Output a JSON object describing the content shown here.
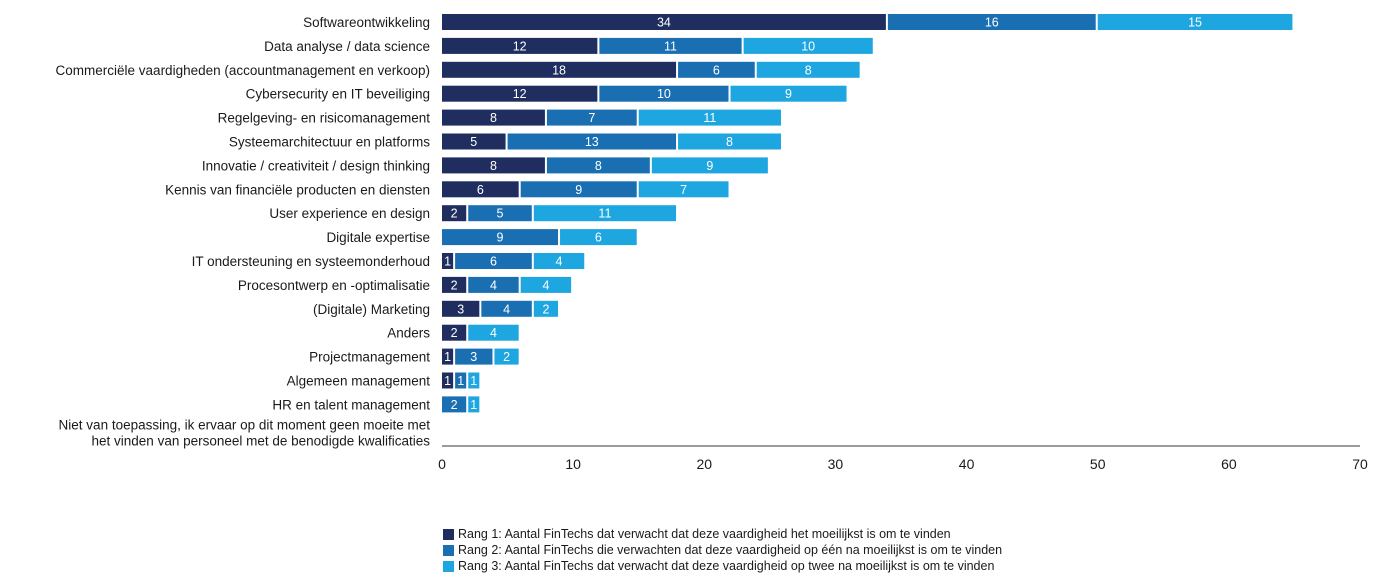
{
  "chart_data": {
    "type": "bar",
    "orientation": "horizontal",
    "stacked": true,
    "categories": [
      "Softwareontwikkeling",
      "Data analyse / data science",
      "Commerciële vaardigheden (accountmanagement en verkoop)",
      "Cybersecurity en IT beveiliging",
      "Regelgeving- en risicomanagement",
      "Systeemarchitectuur en platforms",
      "Innovatie / creativiteit / design thinking",
      "Kennis van financiële producten en diensten",
      "User experience en design",
      "Digitale expertise",
      "IT ondersteuning en systeemonderhoud",
      "Procesontwerp en -optimalisatie",
      "(Digitale) Marketing",
      "Anders",
      "Projectmanagement",
      "Algemeen management",
      "HR en talent management",
      "Niet van toepassing, ik ervaar op dit moment geen moeite met het vinden van personeel met de benodigde kwalificaties"
    ],
    "series": [
      {
        "name": "Rang 1: Aantal FinTechs dat verwacht dat deze vaardigheid het moeilijkst is om te vinden",
        "color": "#1f2d5f",
        "values": [
          34,
          12,
          18,
          12,
          8,
          5,
          8,
          6,
          2,
          0,
          1,
          2,
          3,
          2,
          1,
          1,
          0,
          0
        ]
      },
      {
        "name": "Rang 2: Aantal FinTechs die verwachten dat deze vaardigheid op één na moeilijkst is om te vinden",
        "color": "#1a6fb2",
        "values": [
          16,
          11,
          6,
          10,
          7,
          13,
          8,
          9,
          5,
          9,
          6,
          4,
          4,
          0,
          3,
          1,
          2,
          0
        ]
      },
      {
        "name": "Rang 3: Aantal FinTechs dat verwacht dat deze vaardigheid op twee na moeilijkst is om te vinden",
        "color": "#1ea6e0",
        "values": [
          15,
          10,
          8,
          9,
          11,
          8,
          9,
          7,
          11,
          6,
          4,
          4,
          2,
          4,
          2,
          1,
          1,
          0
        ]
      }
    ],
    "xlim": [
      0,
      70
    ],
    "xticks": [
      "0",
      "10",
      "20",
      "30",
      "40",
      "50",
      "60",
      "70"
    ],
    "grid": false,
    "legend_position": "bottom"
  }
}
